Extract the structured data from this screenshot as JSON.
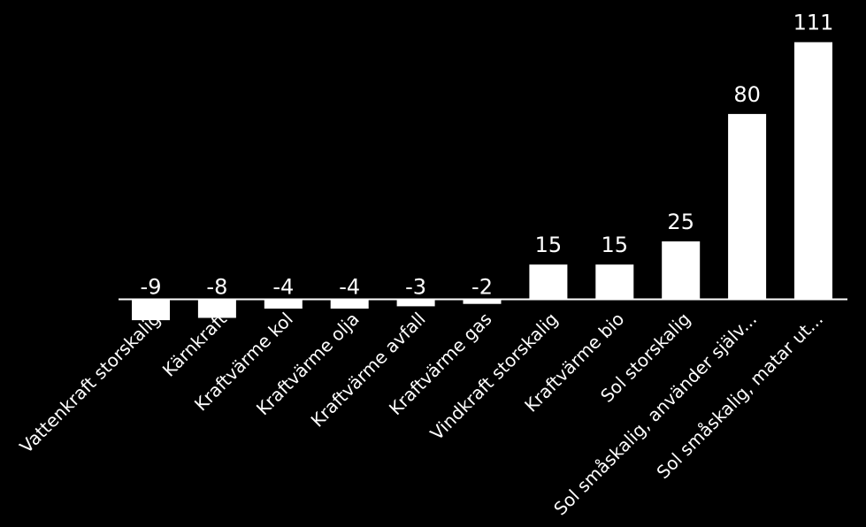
{
  "colors": {
    "background": "#000000",
    "bar": "#ffffff",
    "axis": "#ffffff",
    "text": "#ffffff"
  },
  "chart_data": {
    "type": "bar",
    "categories": [
      "Vattenkraft storskalig",
      "Kärnkraft",
      "Kraftvärme kol",
      "Kraftvärme olja",
      "Kraftvärme avfall",
      "Kraftvärme gas",
      "Vindkraft storskalig",
      "Kraftvärme bio",
      "Sol storskalig",
      "Sol småskalig, använder själv...",
      "Sol småskalig, matar ut..."
    ],
    "values": [
      -9,
      -8,
      -4,
      -4,
      -3,
      -2,
      15,
      15,
      25,
      80,
      111
    ],
    "data_labels": [
      "-9",
      "-8",
      "-4",
      "-4",
      "-3",
      "-2",
      "15",
      "15",
      "25",
      "80",
      "111"
    ],
    "title": "",
    "xlabel": "",
    "ylabel": "",
    "ylim": [
      -10,
      115
    ],
    "grid": false,
    "legend": "none"
  }
}
